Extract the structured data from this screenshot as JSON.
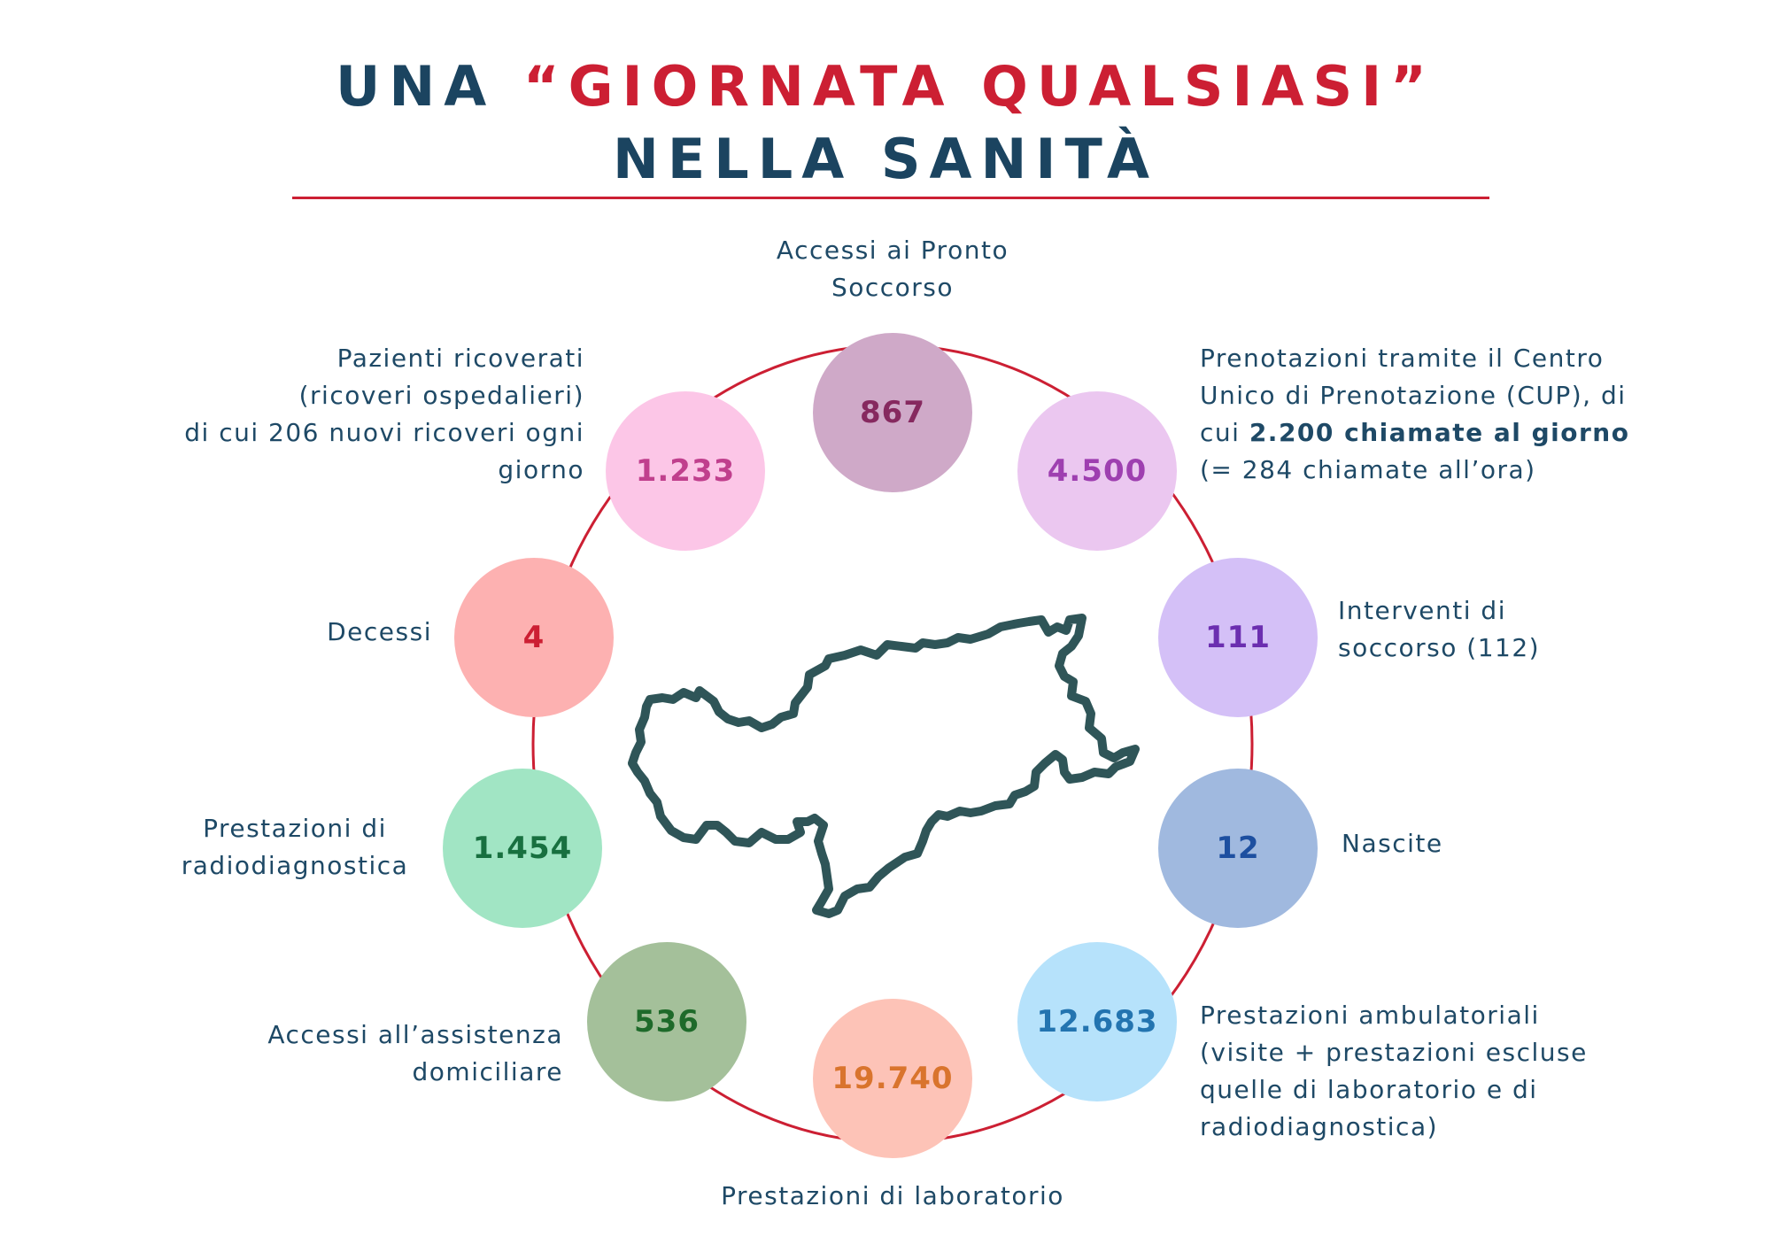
{
  "title": {
    "prefix": "UNA ",
    "highlight": "“GIORNATA QUALSIASI”",
    "line2": "NELLA SANITÀ"
  },
  "colors": {
    "title": "#1b4460",
    "accent": "#cc1f33",
    "text": "#1e4966",
    "map_outline": "#2f5558"
  },
  "stats": [
    {
      "id": "pronto-soccorso",
      "value": "867",
      "bg": "#cfa9c8",
      "fg": "#86295f",
      "label": [
        "Accessi ai Pronto",
        "Soccorso"
      ]
    },
    {
      "id": "cup",
      "value": "4.500",
      "bg": "#ebc7f0",
      "fg": "#9e3fb0",
      "label": [
        "Prenotazioni tramite il Centro",
        "Unico di Prenotazione (CUP), di"
      ],
      "label_mixed": {
        "pre": "cui ",
        "bold": "2.200 chiamate al giorno",
        "post": ""
      },
      "label_after": [
        "(= 284 chiamate all’ora)"
      ]
    },
    {
      "id": "soccorso",
      "value": "111",
      "bg": "#d4c0f7",
      "fg": "#6b2eb0",
      "label": [
        "Interventi di",
        "soccorso (112)"
      ]
    },
    {
      "id": "nascite",
      "value": "12",
      "bg": "#a0b9df",
      "fg": "#1d4fa0",
      "label": [
        "Nascite"
      ]
    },
    {
      "id": "ambulatoriali",
      "value": "12.683",
      "bg": "#b6e2fb",
      "fg": "#2374b0",
      "label": [
        "Prestazioni ambulatoriali",
        "(visite + prestazioni escluse",
        "quelle di laboratorio e di",
        "radiodiagnostica)"
      ]
    },
    {
      "id": "laboratorio",
      "value": "19.740",
      "bg": "#fdc3b7",
      "fg": "#d9742d",
      "label": [
        "Prestazioni di laboratorio"
      ]
    },
    {
      "id": "domiciliare",
      "value": "536",
      "bg": "#a4c09a",
      "fg": "#1e6a2a",
      "label": [
        "Accessi all’assistenza",
        "domiciliare"
      ]
    },
    {
      "id": "radiodiagnostica",
      "value": "1.454",
      "bg": "#a1e5c4",
      "fg": "#187040",
      "label": [
        "Prestazioni di",
        "radiodiagnostica"
      ]
    },
    {
      "id": "decessi",
      "value": "4",
      "bg": "#fdb1b1",
      "fg": "#cc1f33",
      "label": [
        "Decessi"
      ]
    },
    {
      "id": "ricoverati",
      "value": "1.233",
      "bg": "#fcc6e7",
      "fg": "#c03f8d",
      "label": [
        "Pazienti ricoverati",
        "(ricoveri ospedalieri)",
        "di cui 206 nuovi ricoveri ogni",
        "giorno"
      ]
    }
  ],
  "map": {
    "icon": "south-tyrol-outline-icon"
  }
}
